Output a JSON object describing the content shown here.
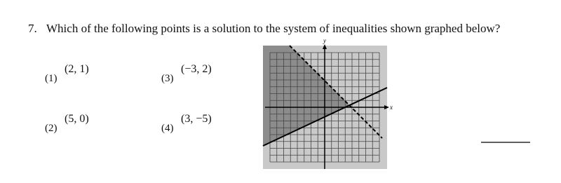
{
  "question": {
    "number": "7.",
    "text": "Which of the following points is a solution to the system of inequalities shown graphed below?"
  },
  "choices": [
    {
      "label": "(1)",
      "point": "(2, 1)"
    },
    {
      "label": "(3)",
      "point": "(−3, 2)"
    },
    {
      "label": "(2)",
      "point": "(5, 0)"
    },
    {
      "label": "(4)",
      "point": "(3, −5)"
    }
  ],
  "graph": {
    "x_axis_label": "x",
    "y_axis_label": "y"
  }
}
